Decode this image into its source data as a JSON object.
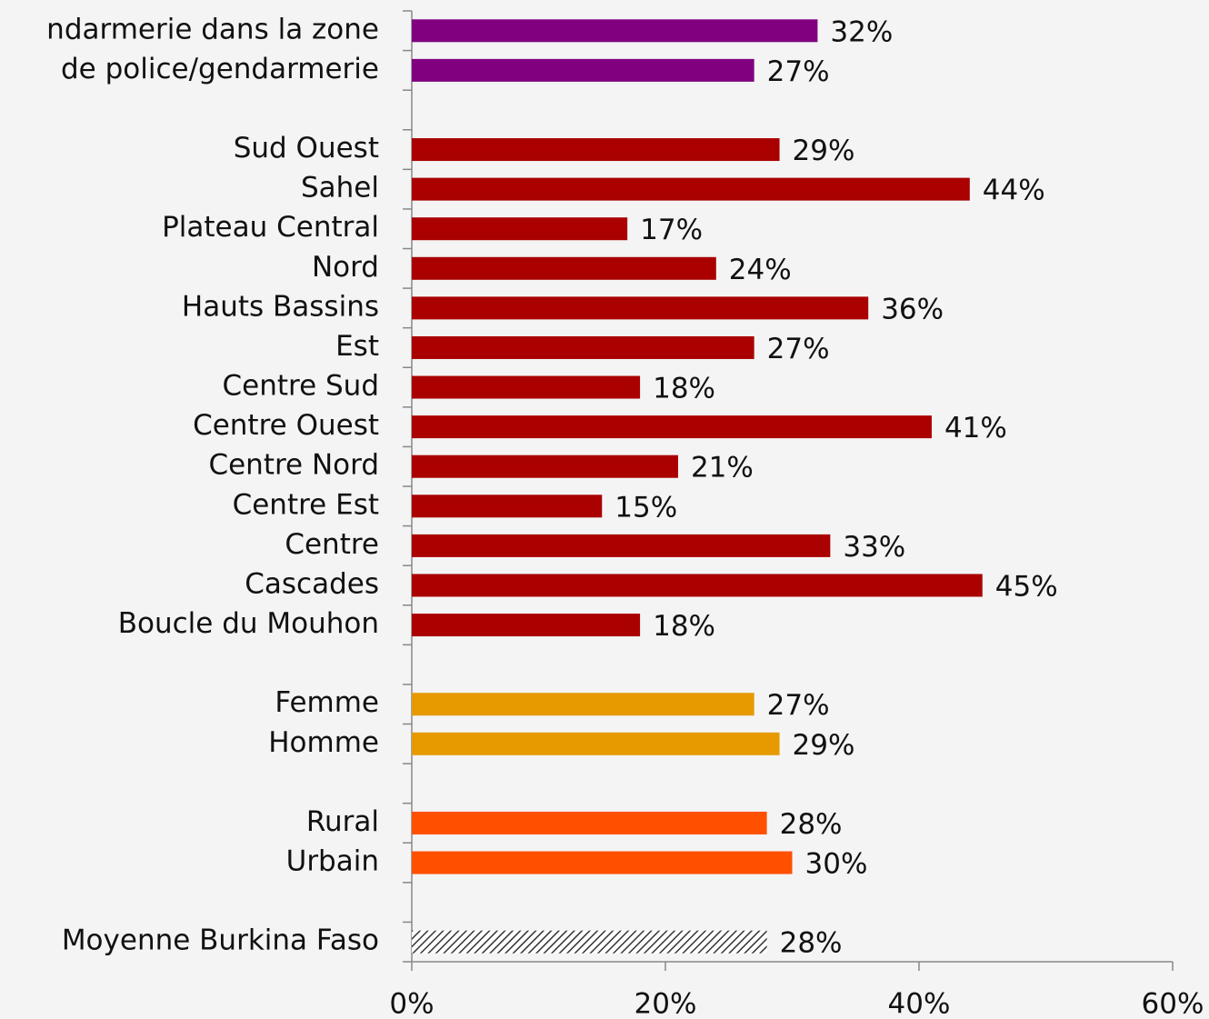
{
  "chart_data": {
    "type": "barh",
    "categories": [
      "ndarmerie dans la zone",
      "de police/gendarmerie",
      null,
      "Sud Ouest",
      "Sahel",
      "Plateau Central",
      "Nord",
      "Hauts Bassins",
      "Est",
      "Centre Sud",
      "Centre Ouest",
      "Centre Nord",
      "Centre Est",
      "Centre",
      "Cascades",
      "Boucle du Mouhon",
      null,
      "Femme",
      "Homme",
      null,
      "Rural",
      "Urbain",
      null,
      "Moyenne Burkina Faso"
    ],
    "values": [
      32,
      27,
      null,
      29,
      44,
      17,
      24,
      36,
      27,
      18,
      41,
      21,
      15,
      33,
      45,
      18,
      null,
      27,
      29,
      null,
      28,
      30,
      null,
      28
    ],
    "value_labels": [
      "32%",
      "27%",
      null,
      "29%",
      "44%",
      "17%",
      "24%",
      "36%",
      "27%",
      "18%",
      "41%",
      "21%",
      "15%",
      "33%",
      "45%",
      "18%",
      null,
      "27%",
      "29%",
      null,
      "28%",
      "30%",
      null,
      "28%"
    ],
    "colors": [
      "#800080",
      "#800080",
      null,
      "#aa0000",
      "#aa0000",
      "#aa0000",
      "#aa0000",
      "#aa0000",
      "#aa0000",
      "#aa0000",
      "#aa0000",
      "#aa0000",
      "#aa0000",
      "#aa0000",
      "#aa0000",
      "#aa0000",
      null,
      "#e69a00",
      "#e69a00",
      null,
      "#ff5000",
      "#ff5000",
      null,
      "#444444"
    ],
    "hatched": [
      23
    ],
    "xlim": [
      0,
      60
    ],
    "xticks": [
      {
        "value": 0,
        "label": "0%"
      },
      {
        "value": 20,
        "label": "20%"
      },
      {
        "value": 40,
        "label": "40%"
      },
      {
        "value": 60,
        "label": "60%"
      }
    ]
  }
}
